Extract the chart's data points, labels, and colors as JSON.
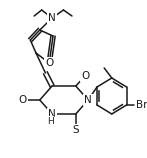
{
  "bg_color": "#ffffff",
  "figsize": [
    1.47,
    1.58
  ],
  "dpi": 100,
  "line_color": "#1a1a1a",
  "line_width": 1.1,
  "xlim": [
    0,
    147
  ],
  "ylim": [
    0,
    158
  ]
}
